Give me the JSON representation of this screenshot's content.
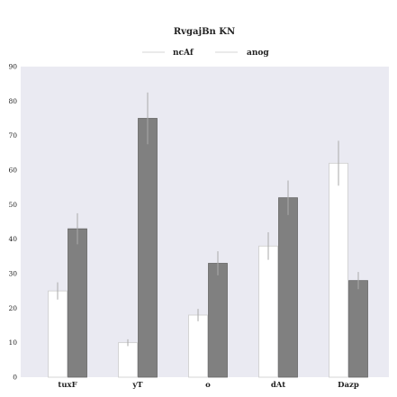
{
  "chart_data": {
    "type": "bar",
    "title": "RvgajBn KN",
    "xlabel": "",
    "ylabel": "",
    "categories": [
      "tuxF",
      "yT",
      "o",
      "dAt",
      "Dazp"
    ],
    "ylim": [
      0,
      90
    ],
    "yticks": [
      0,
      10,
      20,
      30,
      40,
      50,
      60,
      70,
      80,
      90
    ],
    "grid": false,
    "legend_position": "top-center",
    "series": [
      {
        "name": "ncAf",
        "values": [
          25,
          10,
          18,
          38,
          62
        ],
        "errors": [
          2.5,
          1.0,
          1.8,
          4.0,
          6.5
        ],
        "color": "#ffffff",
        "edge_color": "#cccccc"
      },
      {
        "name": "anog",
        "values": [
          43,
          75,
          33,
          52,
          28
        ],
        "errors": [
          4.5,
          7.5,
          3.5,
          5.0,
          2.5
        ],
        "color": "#808080",
        "edge_color": "#666666"
      }
    ],
    "colors": {
      "plot_background": "#eaeaf2",
      "error_bar": "#aaaaaa",
      "legend_line": "#dddddd"
    }
  }
}
